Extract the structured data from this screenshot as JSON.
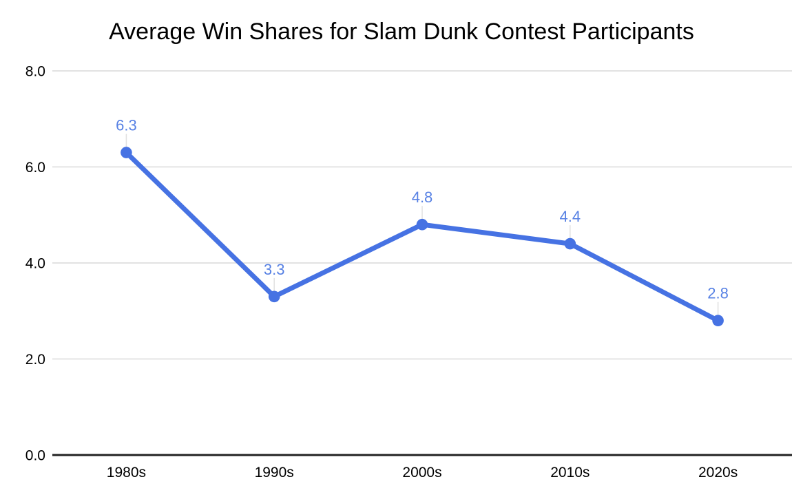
{
  "chart_data": {
    "type": "line",
    "title": "Average Win Shares for Slam Dunk Contest Participants",
    "categories": [
      "1980s",
      "1990s",
      "2000s",
      "2010s",
      "2020s"
    ],
    "series": [
      {
        "name": "Average Win Shares",
        "values": [
          6.3,
          3.3,
          4.8,
          4.4,
          2.8
        ],
        "data_labels": [
          "6.3",
          "3.3",
          "4.8",
          "4.4",
          "2.8"
        ]
      }
    ],
    "xlabel": "",
    "ylabel": "",
    "ylim": [
      0,
      8
    ],
    "yticks": [
      0,
      2,
      4,
      6,
      8
    ],
    "ytick_labels": [
      "0.0",
      "2.0",
      "4.0",
      "6.0",
      "8.0"
    ],
    "grid": true,
    "legend_position": "none",
    "colors": {
      "series_line": "#4672E3",
      "series_marker": "#4672E3",
      "data_label_text": "#5781E4",
      "leader_line": "#e0e0e0",
      "gridline": "#d9d9d9",
      "axis_line": "#212121",
      "tick_text": "#000000",
      "title_text": "#000000",
      "background": "#ffffff"
    }
  }
}
